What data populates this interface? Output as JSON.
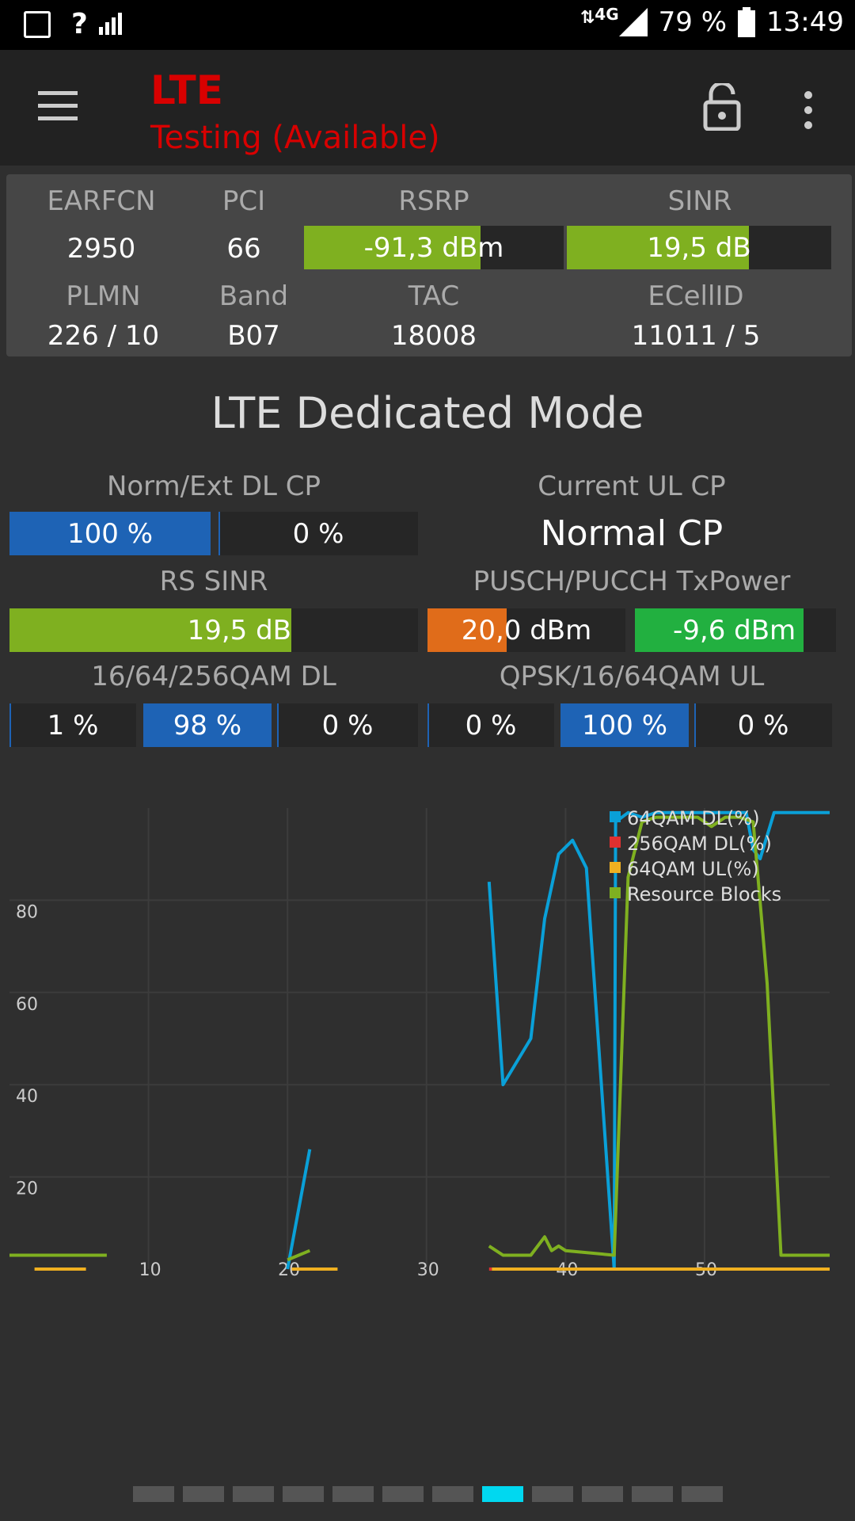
{
  "status_bar": {
    "signal_prefix": "?",
    "network": "4G",
    "battery": "79 %",
    "time": "13:49"
  },
  "app_bar": {
    "title": "LTE",
    "subtitle": "Testing (Available)"
  },
  "cell_info": {
    "earfcn_label": "EARFCN",
    "earfcn": "2950",
    "pci_label": "PCI",
    "pci": "66",
    "rsrp_label": "RSRP",
    "rsrp": "-91,3 dBm",
    "rsrp_level": 0.68,
    "sinr_label": "SINR",
    "sinr": "19,5 dB",
    "sinr_level": 0.69,
    "plmn_label": "PLMN",
    "plmn": "226 / 10",
    "band_label": "Band",
    "band": "B07",
    "tac_label": "TAC",
    "tac": "18008",
    "ecellid_label": "ECellID",
    "ecellid": "11011 / 5"
  },
  "section_title": "LTE Dedicated Mode",
  "dl_cp": {
    "label": "Norm/Ext DL CP",
    "normal": "100 %",
    "extended": "0 %"
  },
  "ul_cp": {
    "label": "Current UL CP",
    "value": "Normal CP"
  },
  "rs_sinr": {
    "label": "RS SINR",
    "value": "19,5 dB",
    "level": 0.69
  },
  "tx_power": {
    "label": "PUSCH/PUCCH TxPower",
    "pusch": "20,0 dBm",
    "pusch_level": 0.4,
    "pucch": "-9,6 dBm",
    "pucch_level": 0.84
  },
  "qam_dl": {
    "label": "16/64/256QAM DL",
    "values": [
      "1 %",
      "98 %",
      "0 %"
    ]
  },
  "qam_ul": {
    "label": "QPSK/16/64QAM UL",
    "values": [
      "0 %",
      "100 %",
      "0 %"
    ]
  },
  "colors": {
    "green": "#7fb020",
    "blue": "#1e63b5",
    "orange": "#e06c1a",
    "bright_green": "#22b040",
    "cyan": "#0aa0d8",
    "red": "#e03030",
    "yellow": "#f0b020",
    "page_active": "#00d8f0"
  },
  "chart_data": {
    "type": "line",
    "xlim": [
      0,
      59
    ],
    "ylim": [
      0,
      100
    ],
    "x_ticks": [
      10,
      20,
      30,
      40,
      50
    ],
    "y_ticks": [
      20,
      40,
      60,
      80
    ],
    "legend_position": "top-right",
    "series": [
      {
        "name": "64QAM DL(%)",
        "color": "#0aa0d8",
        "segments": [
          [
            [
              20,
              0
            ],
            [
              21.6,
              26
            ]
          ],
          [
            [
              34.5,
              84
            ],
            [
              35.5,
              40
            ],
            [
              37.5,
              50
            ],
            [
              38.5,
              76
            ],
            [
              39.5,
              90
            ],
            [
              40.5,
              93
            ],
            [
              41.5,
              87
            ],
            [
              43.5,
              0
            ],
            [
              43.6,
              97
            ],
            [
              44.5,
              99
            ],
            [
              45.5,
              98
            ],
            [
              46.5,
              99
            ],
            [
              48,
              99
            ],
            [
              50,
              99
            ],
            [
              52,
              99
            ],
            [
              53,
              99
            ],
            [
              53.5,
              91
            ],
            [
              54,
              89
            ],
            [
              55,
              99
            ],
            [
              56,
              99
            ],
            [
              57,
              99
            ],
            [
              59,
              99
            ]
          ]
        ]
      },
      {
        "name": "256QAM DL(%)",
        "color": "#e03030",
        "segments": [
          [
            [
              34.5,
              0
            ],
            [
              34.7,
              0
            ]
          ]
        ]
      },
      {
        "name": "64QAM UL(%)",
        "color": "#f0b020",
        "segments": [
          [
            [
              1.8,
              0
            ],
            [
              5.5,
              0
            ]
          ],
          [
            [
              20.3,
              0
            ],
            [
              23.6,
              0
            ]
          ],
          [
            [
              34.7,
              0
            ],
            [
              59,
              0
            ]
          ]
        ]
      },
      {
        "name": "Resource Blocks",
        "color": "#7fb020",
        "segments": [
          [
            [
              0,
              3
            ],
            [
              7,
              3
            ]
          ],
          [
            [
              20,
              2
            ],
            [
              21.6,
              4
            ]
          ],
          [
            [
              34.5,
              5
            ],
            [
              35.5,
              3
            ],
            [
              37.5,
              3
            ],
            [
              38.5,
              7
            ],
            [
              39,
              4
            ],
            [
              39.5,
              5
            ],
            [
              40,
              4
            ],
            [
              43.5,
              3
            ],
            [
              44.5,
              85
            ],
            [
              45.5,
              97
            ],
            [
              46.5,
              98
            ],
            [
              48,
              98
            ],
            [
              49.5,
              98
            ],
            [
              50.5,
              96
            ],
            [
              51.5,
              98
            ],
            [
              52.5,
              98
            ],
            [
              53.5,
              97
            ],
            [
              54.5,
              62
            ],
            [
              55.5,
              3
            ],
            [
              59,
              3
            ]
          ]
        ]
      }
    ]
  },
  "pager": {
    "pages": 12,
    "active": 8
  }
}
